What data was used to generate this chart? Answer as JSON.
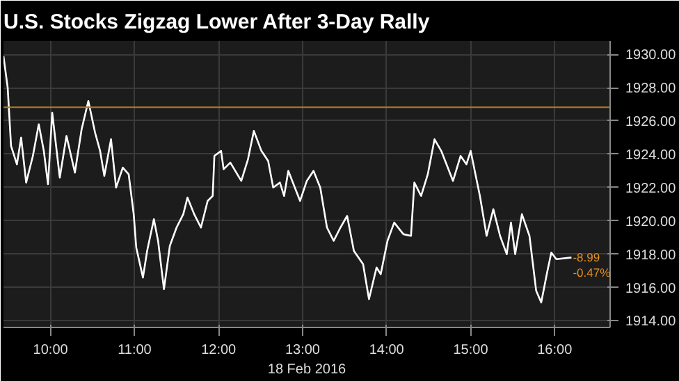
{
  "chart_data": {
    "type": "line",
    "title": "U.S. Stocks Zigzag Lower After 3-Day Rally",
    "xlabel": "18 Feb 2016",
    "x": [
      9.44,
      9.49,
      9.53,
      9.6,
      9.65,
      9.71,
      9.79,
      9.86,
      9.92,
      9.97,
      10.02,
      10.11,
      10.19,
      10.29,
      10.37,
      10.45,
      10.53,
      10.59,
      10.64,
      10.72,
      10.78,
      10.86,
      10.93,
      10.99,
      11.02,
      11.1,
      11.15,
      11.23,
      11.28,
      11.35,
      11.42,
      11.5,
      11.58,
      11.63,
      11.71,
      11.79,
      11.87,
      11.93,
      11.95,
      12.03,
      12.06,
      12.14,
      12.27,
      12.35,
      12.42,
      12.51,
      12.59,
      12.65,
      12.73,
      12.78,
      12.83,
      12.97,
      13.05,
      13.13,
      13.21,
      13.29,
      13.37,
      13.45,
      13.53,
      13.61,
      13.72,
      13.79,
      13.88,
      13.93,
      14.01,
      14.09,
      14.2,
      14.29,
      14.33,
      14.41,
      14.49,
      14.57,
      14.65,
      14.79,
      14.88,
      14.95,
      15.0,
      15.11,
      15.19,
      15.27,
      15.35,
      15.43,
      15.48,
      15.53,
      15.61,
      15.7,
      15.78,
      15.84,
      15.91,
      15.96,
      16.02,
      16.2
    ],
    "series": [
      {
        "color": "#ffffff",
        "values": [
          1929.9,
          1928.0,
          1924.5,
          1923.4,
          1925.0,
          1922.3,
          1923.9,
          1925.8,
          1924.2,
          1922.2,
          1926.5,
          1922.6,
          1925.1,
          1922.9,
          1925.5,
          1927.2,
          1925.3,
          1924.2,
          1922.7,
          1924.9,
          1922.0,
          1923.2,
          1922.8,
          1920.4,
          1918.4,
          1916.6,
          1918.2,
          1920.1,
          1918.8,
          1915.9,
          1918.5,
          1919.6,
          1920.4,
          1921.4,
          1920.4,
          1919.6,
          1921.2,
          1921.5,
          1923.9,
          1924.2,
          1923.1,
          1923.5,
          1922.4,
          1923.7,
          1925.4,
          1924.2,
          1923.6,
          1922.0,
          1922.3,
          1921.5,
          1923.0,
          1921.2,
          1922.4,
          1923.0,
          1922.0,
          1919.6,
          1918.8,
          1919.6,
          1920.3,
          1918.2,
          1917.4,
          1915.3,
          1917.2,
          1916.8,
          1918.8,
          1919.9,
          1919.2,
          1919.1,
          1922.3,
          1921.5,
          1922.8,
          1924.9,
          1924.2,
          1922.4,
          1923.9,
          1923.4,
          1924.2,
          1921.5,
          1919.1,
          1920.7,
          1919.1,
          1918.0,
          1919.9,
          1918.0,
          1920.4,
          1919.1,
          1915.8,
          1915.1,
          1916.9,
          1918.1,
          1917.7,
          1917.8
        ]
      }
    ],
    "xlim": [
      9.44,
      16.66
    ],
    "ylim": [
      1913.6,
      1930.8
    ],
    "xticks": [
      {
        "value": 10,
        "label": "10:00"
      },
      {
        "value": 11,
        "label": "11:00"
      },
      {
        "value": 12,
        "label": "12:00"
      },
      {
        "value": 13,
        "label": "13:00"
      },
      {
        "value": 14,
        "label": "14:00"
      },
      {
        "value": 15,
        "label": "15:00"
      },
      {
        "value": 16,
        "label": "16:00"
      }
    ],
    "yticks": [
      {
        "value": 1914,
        "label": "1914.00"
      },
      {
        "value": 1916,
        "label": "1916.00"
      },
      {
        "value": 1918,
        "label": "1918.00"
      },
      {
        "value": 1920,
        "label": "1920.00"
      },
      {
        "value": 1922,
        "label": "1922.00"
      },
      {
        "value": 1924,
        "label": "1924.00"
      },
      {
        "value": 1926,
        "label": "1926.00"
      },
      {
        "value": 1928,
        "label": "1928.00"
      },
      {
        "value": 1930,
        "label": "1930.00"
      }
    ],
    "ref_lines": [
      {
        "axis": "y",
        "value": 1926.82,
        "color": "#b07a2a"
      }
    ],
    "annotations": [
      {
        "text": "-8.99",
        "x": 16.2,
        "y": 1917.8
      },
      {
        "text": "-0.47%",
        "x": 16.2,
        "y": 1917.8
      }
    ],
    "grid": true,
    "line_style": "solid",
    "marker": "none"
  }
}
